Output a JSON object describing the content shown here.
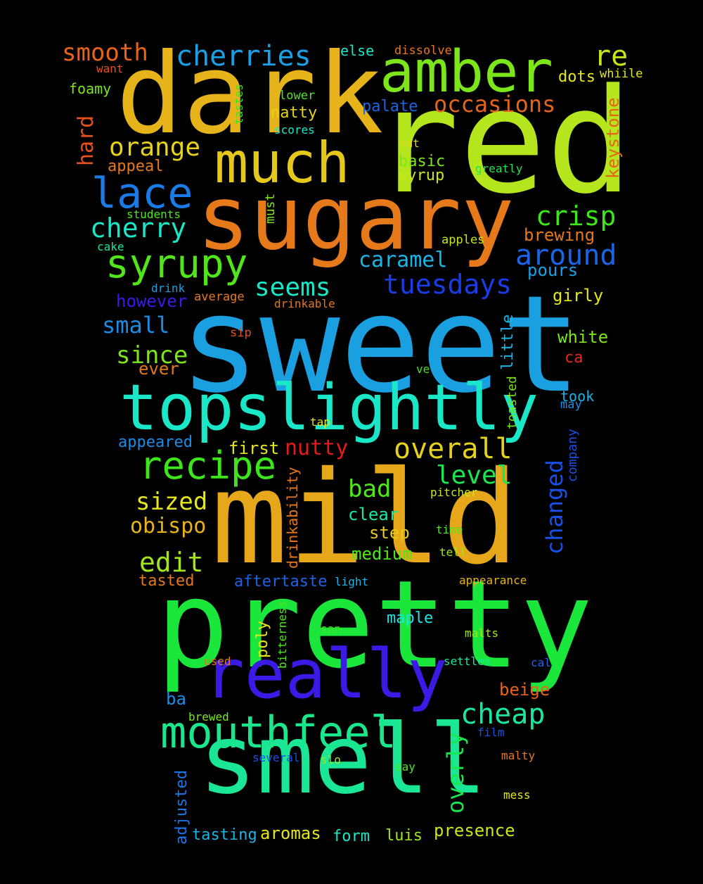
{
  "words": [
    {
      "text": "sweet",
      "color": "#1aa0e0"
    },
    {
      "text": "red",
      "color": "#b5e61d"
    },
    {
      "text": "dark",
      "color": "#e6b41a"
    },
    {
      "text": "mild",
      "color": "#e6a81a"
    },
    {
      "text": "pretty",
      "color": "#1ae63c"
    },
    {
      "text": "sugary",
      "color": "#e67a1a"
    },
    {
      "text": "smell",
      "color": "#1ae696"
    },
    {
      "text": "topslightly",
      "color": "#1ae6c8"
    },
    {
      "text": "really",
      "color": "#3c1ae6"
    },
    {
      "text": "amber",
      "color": "#7de61a"
    },
    {
      "text": "much",
      "color": "#e6c81a"
    },
    {
      "text": "mouthfeel",
      "color": "#1ae68c"
    },
    {
      "text": "recipe",
      "color": "#3ce61a"
    },
    {
      "text": "syrupy",
      "color": "#50e61a"
    },
    {
      "text": "lace",
      "color": "#1a7ae6"
    },
    {
      "text": "cherries",
      "color": "#1aa0e6"
    },
    {
      "text": "overall",
      "color": "#e6d21a"
    },
    {
      "text": "cherry",
      "color": "#1ae6c8"
    },
    {
      "text": "tuesdays",
      "color": "#1a3ce6"
    },
    {
      "text": "around",
      "color": "#1a64e6"
    },
    {
      "text": "crisp",
      "color": "#3ce61a"
    },
    {
      "text": "cheap",
      "color": "#1ae6a0"
    },
    {
      "text": "smooth",
      "color": "#e6641a"
    },
    {
      "text": "orange",
      "color": "#e6d21a"
    },
    {
      "text": "occasions",
      "color": "#e6641a"
    },
    {
      "text": "seems",
      "color": "#1ae6c8"
    },
    {
      "text": "level",
      "color": "#1ae650"
    },
    {
      "text": "re",
      "color": "#c8e61a"
    },
    {
      "text": "edit",
      "color": "#a0e61a"
    },
    {
      "text": "sized",
      "color": "#e6e61a"
    },
    {
      "text": "since",
      "color": "#7de61a"
    },
    {
      "text": "nutty",
      "color": "#e61a1a"
    },
    {
      "text": "bad",
      "color": "#50e61a"
    },
    {
      "text": "small",
      "color": "#1a8ce6"
    },
    {
      "text": "caramel",
      "color": "#1ab4e6"
    },
    {
      "text": "obispo",
      "color": "#e6b41a"
    },
    {
      "text": "changed",
      "color": "#1a50e6"
    },
    {
      "text": "overly",
      "color": "#1ae650"
    },
    {
      "text": "hard",
      "color": "#e6501a"
    },
    {
      "text": "keystone",
      "color": "#e6641a"
    },
    {
      "text": "first",
      "color": "#e6e61a"
    },
    {
      "text": "appeared",
      "color": "#1a8ce6"
    },
    {
      "text": "clear",
      "color": "#1ae6a0"
    },
    {
      "text": "step",
      "color": "#e6c81a"
    },
    {
      "text": "medium",
      "color": "#50e61a"
    },
    {
      "text": "little",
      "color": "#1ab4e6"
    },
    {
      "text": "brewing",
      "color": "#e6781a"
    },
    {
      "text": "pours",
      "color": "#1aa0e6"
    },
    {
      "text": "girly",
      "color": "#e6e61a"
    },
    {
      "text": "white",
      "color": "#7de61a"
    },
    {
      "text": "however",
      "color": "#3c1ae6"
    },
    {
      "text": "ever",
      "color": "#e6781a"
    },
    {
      "text": "natty",
      "color": "#e6d21a"
    },
    {
      "text": "palate",
      "color": "#1a64e6"
    },
    {
      "text": "basic",
      "color": "#7de61a"
    },
    {
      "text": "syrup",
      "color": "#c8e61a"
    },
    {
      "text": "dots",
      "color": "#e6e61a"
    },
    {
      "text": "appeal",
      "color": "#e6781a"
    },
    {
      "text": "tasted",
      "color": "#e6781a"
    },
    {
      "text": "aftertaste",
      "color": "#1a64e6"
    },
    {
      "text": "maple",
      "color": "#1ae6e6"
    },
    {
      "text": "beige",
      "color": "#e6641a"
    },
    {
      "text": "presence",
      "color": "#c8e61a"
    },
    {
      "text": "aromas",
      "color": "#e6e61a"
    },
    {
      "text": "tasting",
      "color": "#1ab4e6"
    },
    {
      "text": "form",
      "color": "#1ae6c8"
    },
    {
      "text": "luis",
      "color": "#a0e61a"
    },
    {
      "text": "adjusted",
      "color": "#1a78e6"
    },
    {
      "text": "ba",
      "color": "#1a8ce6"
    },
    {
      "text": "poly",
      "color": "#e6e61a"
    },
    {
      "text": "drinkability",
      "color": "#e6781a"
    },
    {
      "text": "company",
      "color": "#1a50e6"
    },
    {
      "text": "toasted",
      "color": "#7de61a"
    },
    {
      "text": "bitterness",
      "color": "#50e61a"
    },
    {
      "text": "foamy",
      "color": "#7de61a"
    },
    {
      "text": "else",
      "color": "#1ae6c8"
    },
    {
      "text": "dissolve",
      "color": "#e6781a"
    },
    {
      "text": "whiile",
      "color": "#e6e61a"
    },
    {
      "text": "want",
      "color": "#e6501a"
    },
    {
      "text": "lower",
      "color": "#50e61a"
    },
    {
      "text": "tastes",
      "color": "#3ce61a"
    },
    {
      "text": "scores",
      "color": "#1ae6c8"
    },
    {
      "text": "sat",
      "color": "#e6d21a"
    },
    {
      "text": "greatly",
      "color": "#1ae650"
    },
    {
      "text": "must",
      "color": "#7de61a"
    },
    {
      "text": "students",
      "color": "#50e61a"
    },
    {
      "text": "cake",
      "color": "#1ae6a0"
    },
    {
      "text": "apples",
      "color": "#c8e61a"
    },
    {
      "text": "drink",
      "color": "#1aa0e6"
    },
    {
      "text": "average",
      "color": "#e6781a"
    },
    {
      "text": "drinkable",
      "color": "#e6781a"
    },
    {
      "text": "sip",
      "color": "#e6501a"
    },
    {
      "text": "ca",
      "color": "#e6281a"
    },
    {
      "text": "ve",
      "color": "#3ce61a"
    },
    {
      "text": "took",
      "color": "#1ab4e6"
    },
    {
      "text": "may",
      "color": "#1a8ce6"
    },
    {
      "text": "tap",
      "color": "#e6e61a"
    },
    {
      "text": "pitcher",
      "color": "#c8e61a"
    },
    {
      "text": "time",
      "color": "#50e61a"
    },
    {
      "text": "tell",
      "color": "#a0e61a"
    },
    {
      "text": "light",
      "color": "#1ab4e6"
    },
    {
      "text": "appearance",
      "color": "#e6b41a"
    },
    {
      "text": "san",
      "color": "#3ce61a"
    },
    {
      "text": "malts",
      "color": "#a0e61a"
    },
    {
      "text": "used",
      "color": "#e6781a"
    },
    {
      "text": "settles",
      "color": "#1ae6a0"
    },
    {
      "text": "cal",
      "color": "#1a64e6"
    },
    {
      "text": "brewed",
      "color": "#7de61a"
    },
    {
      "text": "film",
      "color": "#1a50e6"
    },
    {
      "text": "several",
      "color": "#1a50e6"
    },
    {
      "text": "slo",
      "color": "#a0e61a"
    },
    {
      "text": "say",
      "color": "#50e61a"
    },
    {
      "text": "malty",
      "color": "#e6781a"
    },
    {
      "text": "mess",
      "color": "#e6e61a"
    }
  ]
}
